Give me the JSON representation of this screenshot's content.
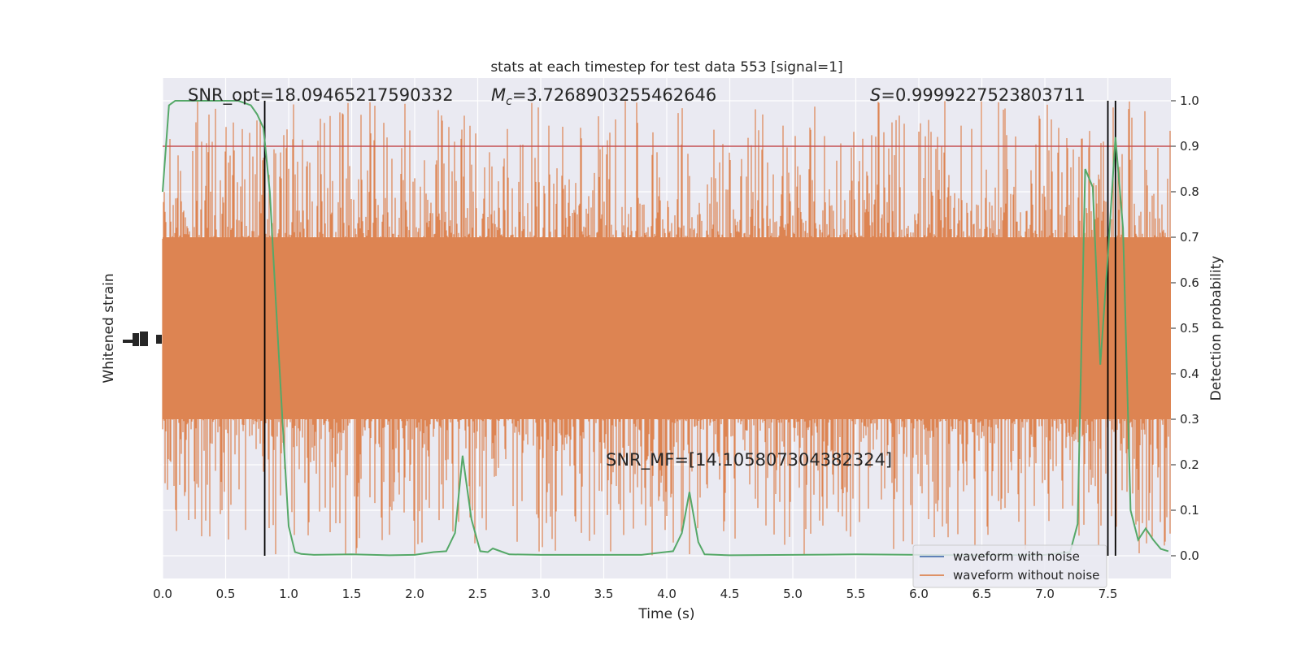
{
  "chart_data": {
    "type": "line",
    "title": "stats at each timestep for test data 553 [signal=1]",
    "xlabel": "Time (s)",
    "ylabel_left": "Whitened strain",
    "ylabel_right": "Detection probability",
    "xlim": [
      0,
      8
    ],
    "ylim_right": [
      -0.05,
      1.05
    ],
    "x_ticks": [
      "0.0",
      "0.5",
      "1.0",
      "1.5",
      "2.0",
      "2.5",
      "3.0",
      "3.5",
      "4.0",
      "4.5",
      "5.0",
      "5.5",
      "6.0",
      "6.5",
      "7.0",
      "7.5"
    ],
    "y_right_ticks": [
      "0.0",
      "0.1",
      "0.2",
      "0.3",
      "0.4",
      "0.5",
      "0.6",
      "0.7",
      "0.8",
      "0.9",
      "1.0"
    ],
    "grid": true,
    "annotations": {
      "snr_opt": "SNR_opt=18.09465217590332",
      "mc_symbol": "M",
      "mc_sub": "c",
      "mc_value": "=3.7268903255462646",
      "s_symbol": "S",
      "s_value": "=0.9999227523803711",
      "snr_mf": "SNR_MF=[14.105807304382324]"
    },
    "threshold": {
      "y": 0.9,
      "color": "#c44e52"
    },
    "vertical_markers": [
      0.81,
      7.5,
      7.56
    ],
    "series": [
      {
        "name": "waveform with noise",
        "color": "#4c72b0",
        "values": []
      },
      {
        "name": "waveform without noise",
        "color": "#dd8452"
      },
      {
        "color": "#55a868",
        "x": [
          0.0,
          0.05,
          0.1,
          0.15,
          0.2,
          0.3,
          0.4,
          0.5,
          0.6,
          0.7,
          0.75,
          0.8,
          0.85,
          0.9,
          0.95,
          1.0,
          1.05,
          1.1,
          1.2,
          1.5,
          1.8,
          2.0,
          2.15,
          2.25,
          2.32,
          2.38,
          2.45,
          2.52,
          2.58,
          2.62,
          2.7,
          2.75,
          3.0,
          3.5,
          3.8,
          3.95,
          4.05,
          4.12,
          4.18,
          4.25,
          4.3,
          4.5,
          5.0,
          5.5,
          6.0,
          6.5,
          7.0,
          7.2,
          7.26,
          7.32,
          7.38,
          7.44,
          7.5,
          7.56,
          7.62,
          7.68,
          7.74,
          7.8,
          7.86,
          7.92,
          7.98
        ],
        "y": [
          0.8,
          0.99,
          1.0,
          1.0,
          1.0,
          1.0,
          1.0,
          1.0,
          1.0,
          0.99,
          0.97,
          0.94,
          0.8,
          0.55,
          0.3,
          0.065,
          0.008,
          0.004,
          0.002,
          0.003,
          0.001,
          0.002,
          0.008,
          0.01,
          0.05,
          0.22,
          0.08,
          0.01,
          0.008,
          0.016,
          0.008,
          0.003,
          0.002,
          0.002,
          0.002,
          0.007,
          0.01,
          0.05,
          0.14,
          0.03,
          0.003,
          0.001,
          0.002,
          0.003,
          0.002,
          0.001,
          0.002,
          0.008,
          0.07,
          0.85,
          0.81,
          0.42,
          0.66,
          0.92,
          0.72,
          0.1,
          0.035,
          0.06,
          0.035,
          0.015,
          0.01
        ]
      }
    ],
    "legend_location": "lower-right"
  }
}
